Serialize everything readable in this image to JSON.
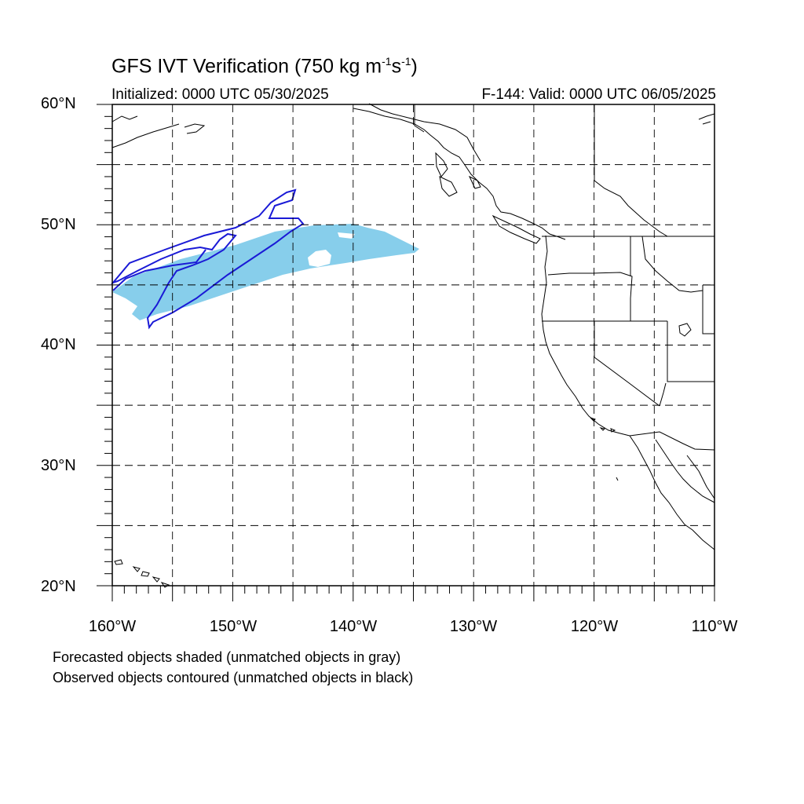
{
  "title": {
    "prefix": "GFS IVT Verification (750 kg m",
    "exp1": "-1",
    "middle": "s",
    "exp2": "-1",
    "suffix": ")"
  },
  "subtitle": {
    "initialized": "Initialized: 0000 UTC 05/30/2025",
    "valid": "F-144: Valid: 0000 UTC 06/05/2025"
  },
  "map": {
    "lon_range": [
      -160,
      -110
    ],
    "lat_range": [
      20,
      60
    ],
    "grid_lons": [
      -155,
      -150,
      -145,
      -140,
      -135,
      -130,
      -125,
      -120,
      -115
    ],
    "grid_lats": [
      25,
      30,
      35,
      40,
      45,
      50,
      55
    ],
    "lat_labels": [
      "60°N",
      "50°N",
      "40°N",
      "30°N",
      "20°N"
    ],
    "lon_labels": [
      "160°W",
      "150°W",
      "140°W",
      "130°W",
      "120°W",
      "110°W"
    ],
    "forecast_color": "#87ceeb",
    "observed_color": "#1a1ad6"
  },
  "notes": {
    "forecast": "Forecasted objects shaded (unmatched objects in gray)",
    "observed": "Observed objects contoured (unmatched objects in black)"
  }
}
